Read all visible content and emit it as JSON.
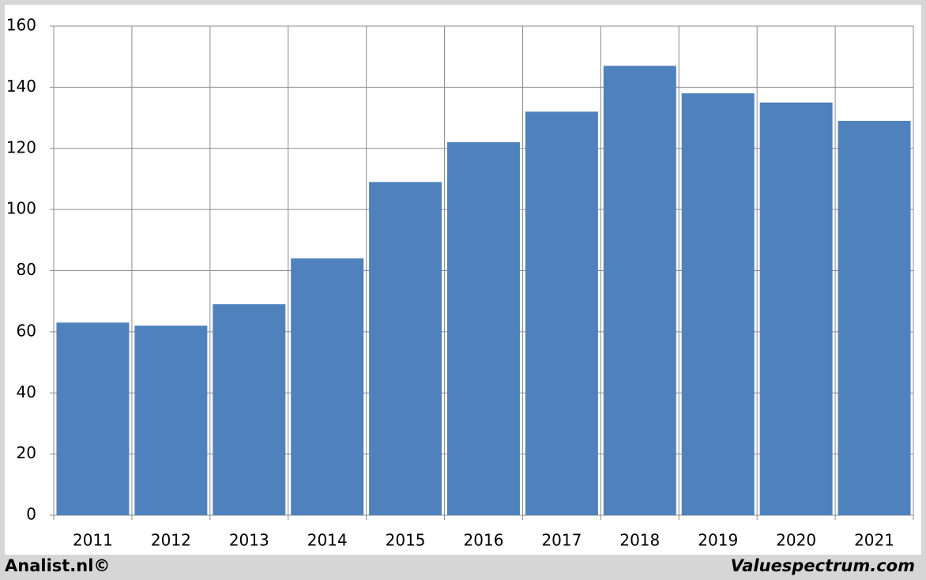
{
  "chart_data": {
    "type": "bar",
    "categories": [
      "2011",
      "2012",
      "2013",
      "2014",
      "2015",
      "2016",
      "2017",
      "2018",
      "2019",
      "2020",
      "2021"
    ],
    "values": [
      63,
      62,
      69,
      84,
      109,
      122,
      132,
      147,
      138,
      135,
      129
    ],
    "color": "#4f81bd",
    "ylim": [
      0,
      160
    ],
    "yticks": [
      0,
      20,
      40,
      60,
      80,
      100,
      120,
      140,
      160
    ],
    "grid": true,
    "credits": [
      "Analist.nl©",
      "Valuespectrum.com"
    ]
  }
}
